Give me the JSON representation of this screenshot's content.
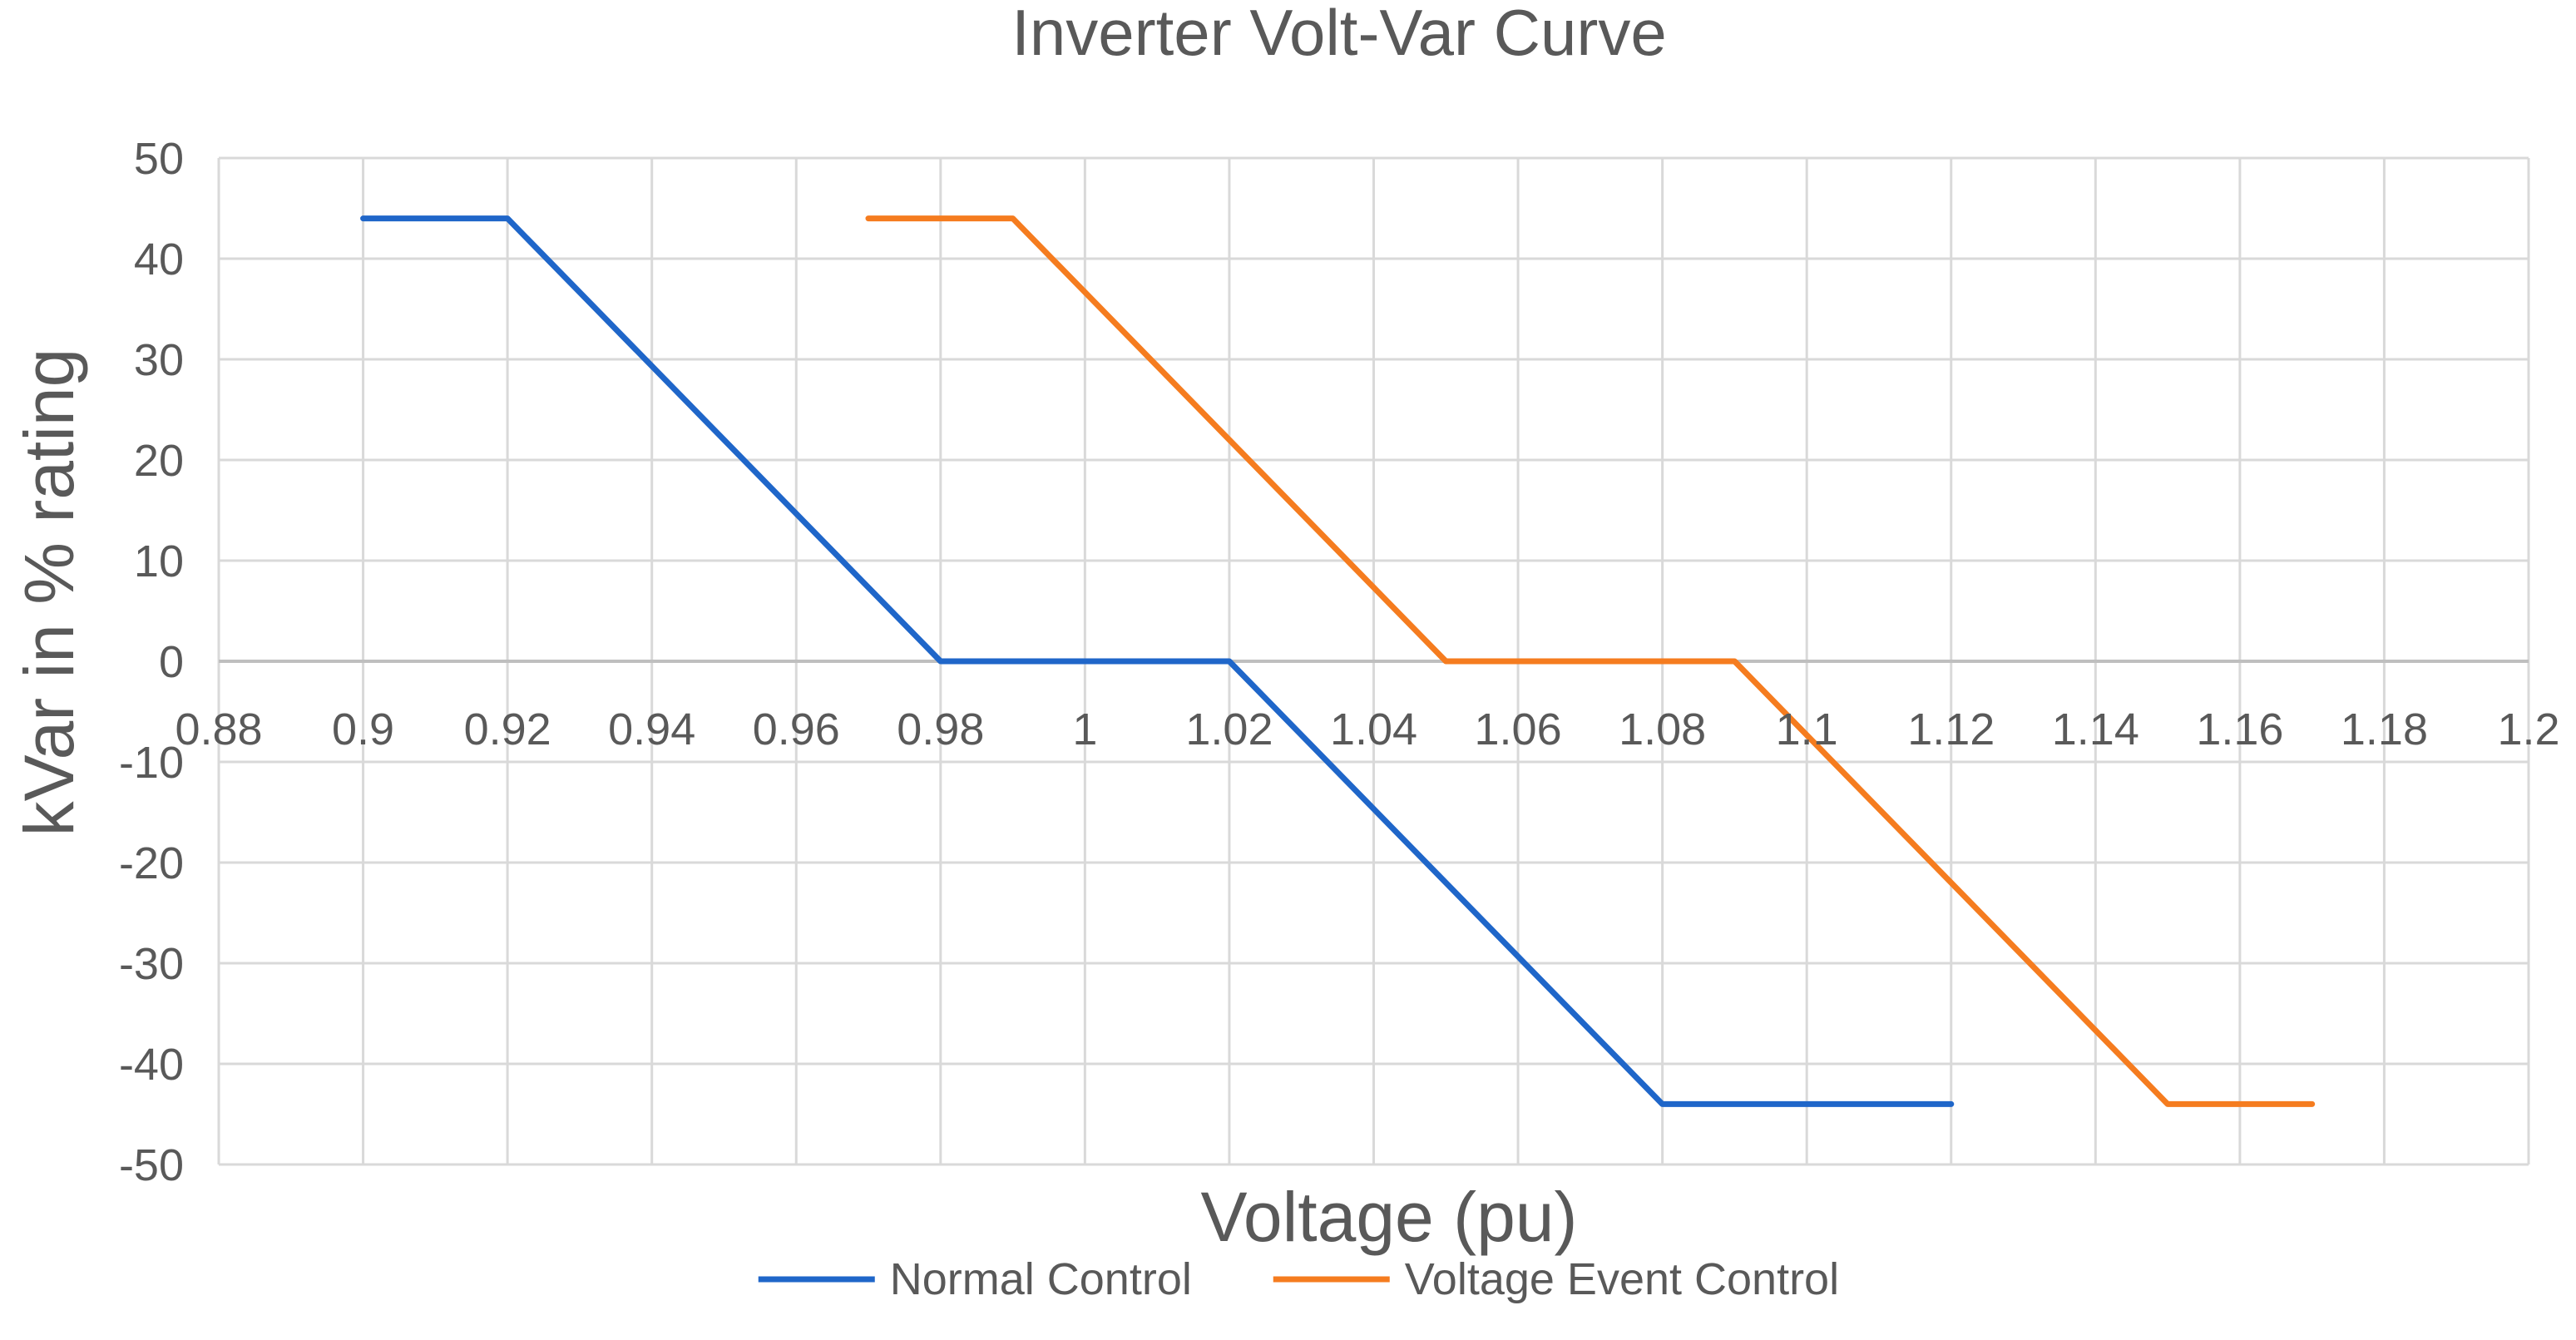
{
  "chart_data": {
    "type": "line",
    "title": "Inverter Volt-Var Curve",
    "xlabel": "Voltage (pu)",
    "ylabel": "kVar in % rating",
    "xlim": [
      0.88,
      1.2
    ],
    "ylim": [
      -50,
      50
    ],
    "x_ticks": [
      0.88,
      0.9,
      0.92,
      0.94,
      0.96,
      0.98,
      1.0,
      1.02,
      1.04,
      1.06,
      1.08,
      1.1,
      1.12,
      1.14,
      1.16,
      1.18,
      1.2
    ],
    "x_tick_labels": [
      "0.88",
      "0.9",
      "0.92",
      "0.94",
      "0.96",
      "0.98",
      "1",
      "1.02",
      "1.04",
      "1.06",
      "1.08",
      "1.1",
      "1.12",
      "1.14",
      "1.16",
      "1.18",
      "1.2"
    ],
    "y_ticks": [
      50,
      40,
      30,
      20,
      10,
      0,
      -10,
      -20,
      -30,
      -40,
      -50
    ],
    "y_tick_labels": [
      "50",
      "40",
      "30",
      "20",
      "10",
      "0",
      "-10",
      "-20",
      "-30",
      "-40",
      "-50"
    ],
    "grid": true,
    "legend_position": "bottom",
    "series": [
      {
        "name": "Normal Control",
        "color": "#1F66C9",
        "x": [
          0.9,
          0.92,
          0.98,
          1.02,
          1.08,
          1.12
        ],
        "y": [
          44,
          44,
          0,
          0,
          -44,
          -44
        ]
      },
      {
        "name": "Voltage Event Control",
        "color": "#F57C1F",
        "x": [
          0.97,
          0.99,
          1.05,
          1.09,
          1.15,
          1.17
        ],
        "y": [
          44,
          44,
          0,
          0,
          -44,
          -44
        ]
      }
    ]
  }
}
